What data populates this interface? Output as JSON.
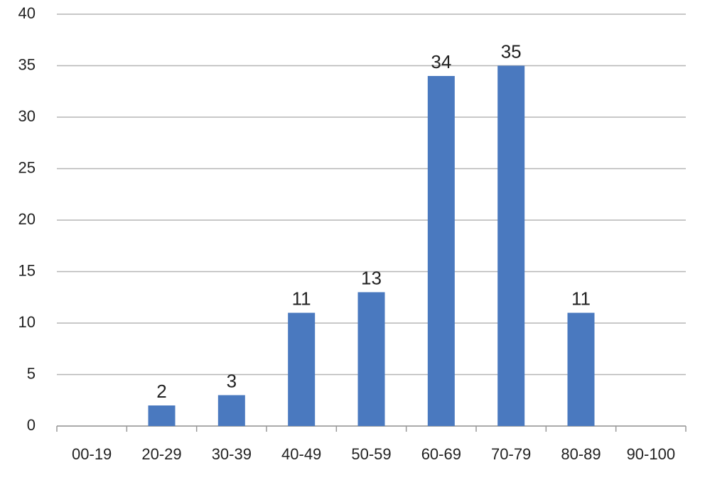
{
  "chart_data": {
    "type": "bar",
    "categories": [
      "00-19",
      "20-29",
      "30-39",
      "40-49",
      "50-59",
      "60-69",
      "70-79",
      "80-89",
      "90-100"
    ],
    "values": [
      null,
      2,
      3,
      11,
      13,
      34,
      35,
      11,
      null
    ],
    "color": "#4a79bf",
    "ylim": [
      0,
      40
    ],
    "yticks": [
      0,
      5,
      10,
      15,
      20,
      25,
      30,
      35,
      40
    ],
    "grid": true
  }
}
